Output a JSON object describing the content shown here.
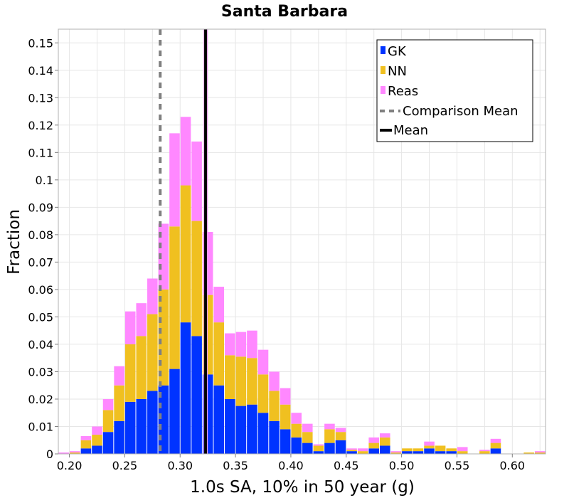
{
  "chart_data": {
    "type": "bar",
    "stacked": true,
    "title": "Santa Barbara",
    "xlabel": "1.0s SA, 10% in 50 year (g)",
    "ylabel": "Fraction",
    "xlim": [
      0.19,
      0.63
    ],
    "ylim": [
      0,
      0.155
    ],
    "bin_width": 0.01,
    "x_ticks": [
      "0.20",
      "0.25",
      "0.30",
      "0.35",
      "0.40",
      "0.45",
      "0.50",
      "0.55",
      "0.60"
    ],
    "y_ticks": [
      "0",
      "0.01",
      "0.02",
      "0.03",
      "0.04",
      "0.05",
      "0.06",
      "0.07",
      "0.08",
      "0.09",
      "0.1",
      "0.11",
      "0.12",
      "0.13",
      "0.14",
      "0.15"
    ],
    "grid": true,
    "legend_position": "top-right",
    "colors": {
      "GK": "#0033ff",
      "NN": "#f0c020",
      "Reas": "#ff88ff",
      "comparison_mean": "#808080",
      "mean": "#000000"
    },
    "x": [
      0.195,
      0.205,
      0.215,
      0.225,
      0.235,
      0.245,
      0.255,
      0.265,
      0.275,
      0.285,
      0.295,
      0.305,
      0.315,
      0.325,
      0.335,
      0.345,
      0.355,
      0.365,
      0.375,
      0.385,
      0.395,
      0.405,
      0.415,
      0.425,
      0.435,
      0.445,
      0.455,
      0.465,
      0.475,
      0.485,
      0.495,
      0.505,
      0.515,
      0.525,
      0.535,
      0.545,
      0.555,
      0.565,
      0.575,
      0.585,
      0.595,
      0.605,
      0.615,
      0.625
    ],
    "series": [
      {
        "name": "GK",
        "values": [
          0.0,
          0.0,
          0.002,
          0.003,
          0.008,
          0.012,
          0.019,
          0.02,
          0.023,
          0.025,
          0.031,
          0.048,
          0.043,
          0.029,
          0.025,
          0.02,
          0.0175,
          0.018,
          0.015,
          0.012,
          0.009,
          0.006,
          0.004,
          0.001,
          0.004,
          0.005,
          0.001,
          0.0,
          0.002,
          0.003,
          0.0,
          0.001,
          0.001,
          0.002,
          0.001,
          0.001,
          0.0,
          0.0,
          0.0,
          0.002,
          0.0,
          0.0,
          0.0,
          0.0
        ]
      },
      {
        "name": "NN",
        "values": [
          0.0,
          0.0005,
          0.003,
          0.004,
          0.008,
          0.013,
          0.021,
          0.023,
          0.028,
          0.035,
          0.052,
          0.05,
          0.042,
          0.029,
          0.023,
          0.016,
          0.018,
          0.017,
          0.014,
          0.011,
          0.009,
          0.005,
          0.004,
          0.002,
          0.005,
          0.003,
          0.0005,
          0.001,
          0.002,
          0.003,
          0.0005,
          0.001,
          0.001,
          0.001,
          0.002,
          0.001,
          0.001,
          0.0,
          0.001,
          0.002,
          0.0,
          0.0,
          0.0005,
          0.0005
        ]
      },
      {
        "name": "Reas",
        "values": [
          0.0005,
          0.0005,
          0.0015,
          0.003,
          0.004,
          0.007,
          0.012,
          0.012,
          0.013,
          0.024,
          0.034,
          0.025,
          0.029,
          0.023,
          0.013,
          0.008,
          0.009,
          0.01,
          0.009,
          0.007,
          0.006,
          0.004,
          0.003,
          0.0005,
          0.002,
          0.0015,
          0.0005,
          0.001,
          0.002,
          0.0015,
          0.0005,
          0.0,
          0.0,
          0.0015,
          0.0,
          0.0,
          0.0015,
          0.0,
          0.0005,
          0.0015,
          0.0,
          0.0,
          0.0,
          0.0005
        ]
      }
    ],
    "comparison_mean": 0.282,
    "mean": 0.323,
    "legend": [
      "GK",
      "NN",
      "Reas",
      "Comparison Mean",
      "Mean"
    ]
  }
}
